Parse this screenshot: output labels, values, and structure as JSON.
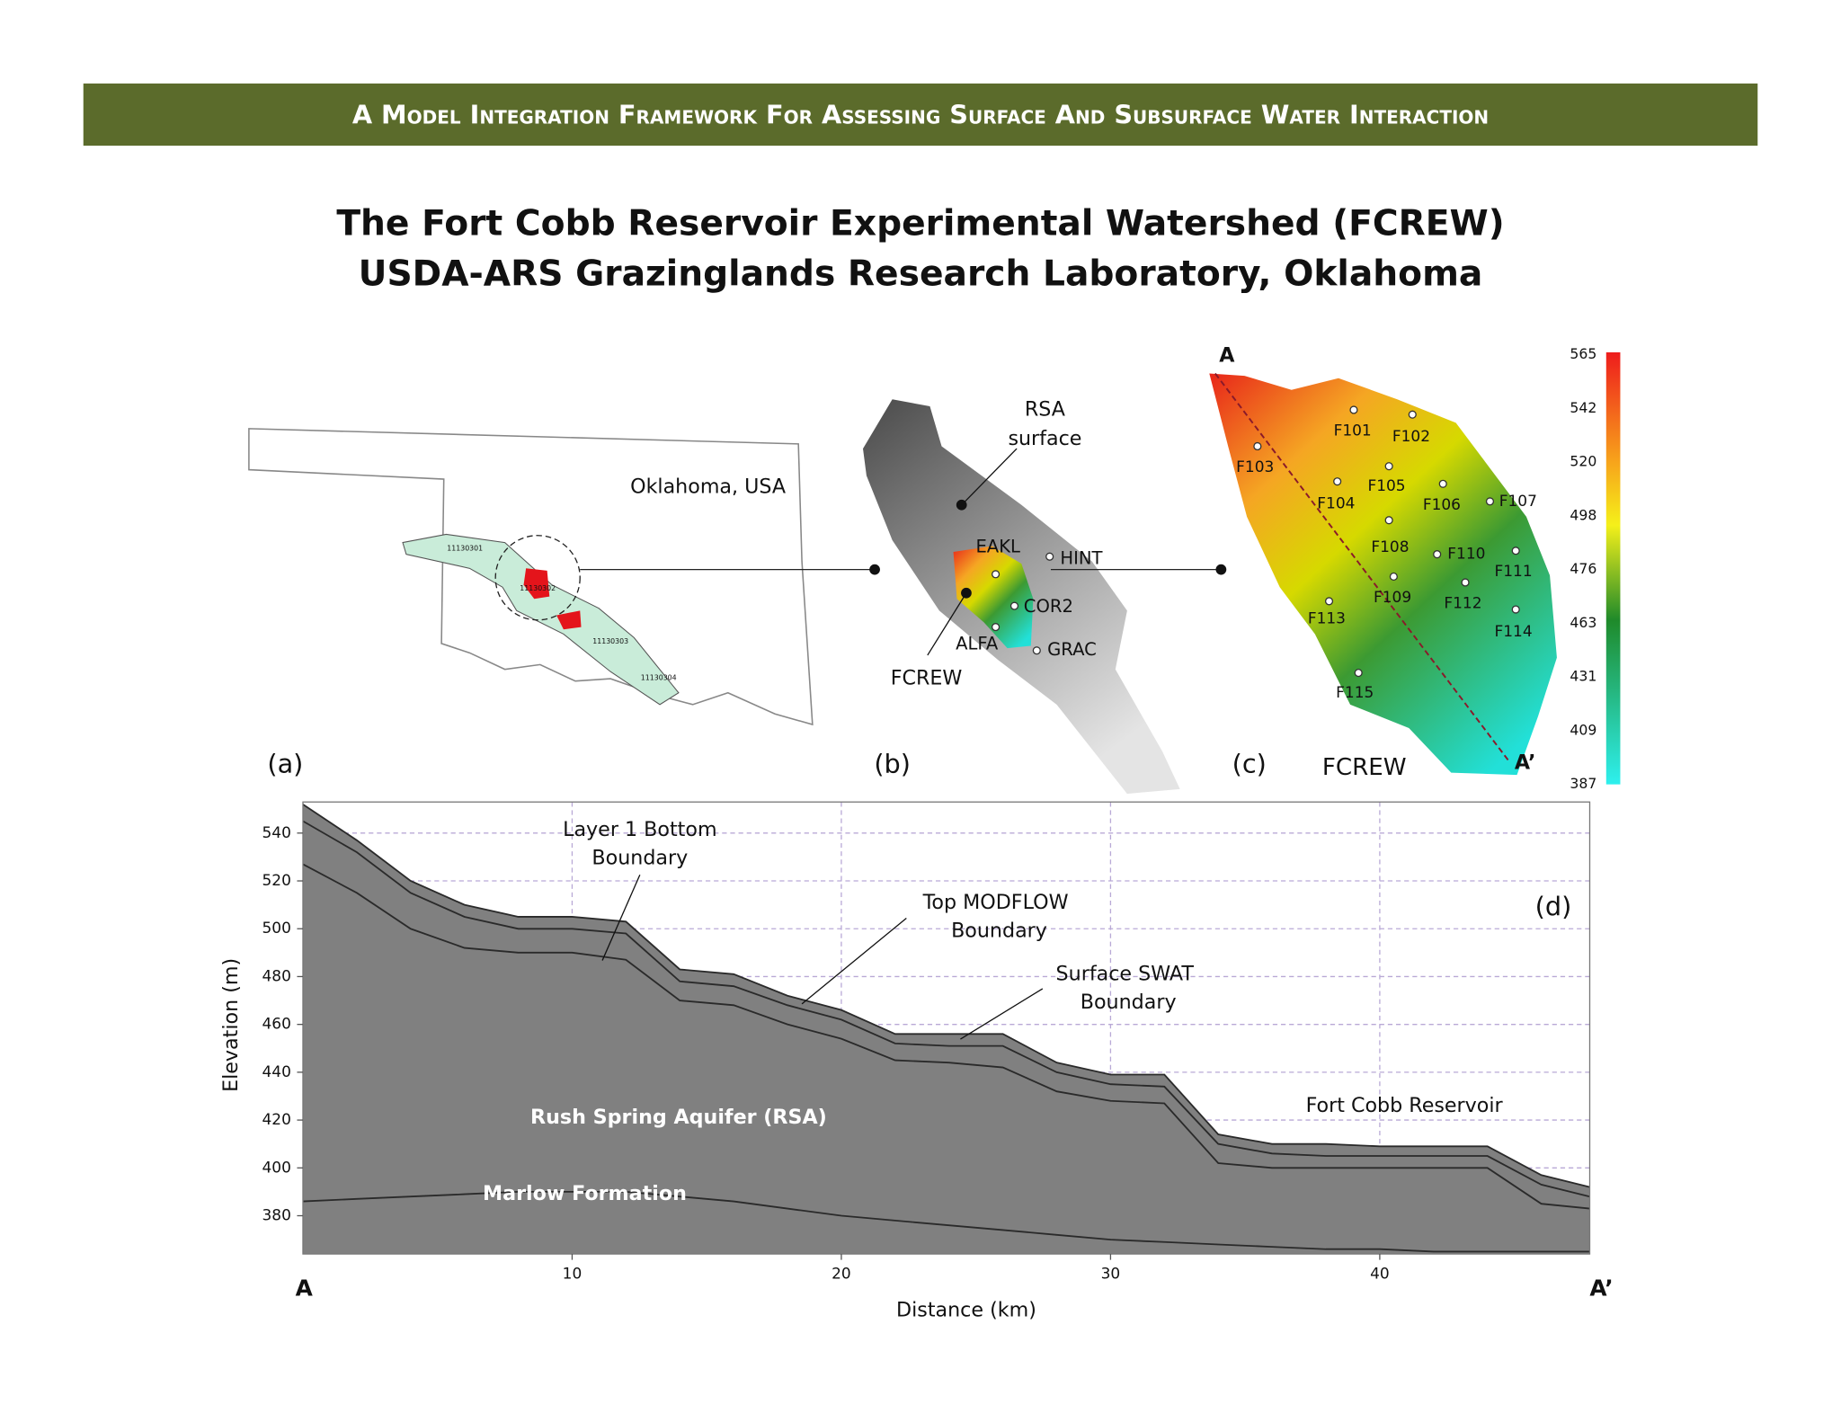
{
  "header": {
    "title": "A  Model Integration Framework For Assessing Surface And Subsurface Water Interaction"
  },
  "title": [
    "The Fort Cobb Reservoir Experimental Watershed (FCREW)",
    "USDA-ARS Grazinglands Research Laboratory, Oklahoma"
  ],
  "panels": {
    "a": {
      "label": "(a)",
      "place": "Oklahoma, USA",
      "codes": [
        "11130301",
        "11130302",
        "11130303",
        "11130304"
      ]
    },
    "b": {
      "label": "(b)",
      "rsa": [
        "RSA",
        "surface"
      ],
      "stations": [
        "EAKL",
        "HINT",
        "COR2",
        "ALFA",
        "GRAC"
      ],
      "fcrew": "FCREW"
    },
    "c": {
      "label": "(c)",
      "name": "FCREW",
      "start": "A",
      "end": "A’",
      "stations": [
        "F101",
        "F102",
        "F103",
        "F104",
        "F105",
        "F106",
        "F107",
        "F108",
        "F110",
        "F111",
        "F109",
        "F112",
        "F113",
        "F114",
        "F115"
      ],
      "colorbar": [
        565,
        542,
        520,
        498,
        476,
        463,
        431,
        409,
        387
      ]
    }
  },
  "chart_data": {
    "type": "line",
    "xlabel": "Distance (km)",
    "ylabel": "Elevation (m)",
    "xlim": [
      0,
      47.8
    ],
    "ylim": [
      364,
      553
    ],
    "xticks": [
      10,
      20,
      30,
      40
    ],
    "yticks": [
      380,
      400,
      420,
      440,
      460,
      480,
      500,
      520,
      540
    ],
    "grid": true,
    "fill": "#808080",
    "x": [
      0,
      2,
      4,
      6,
      8,
      10,
      12,
      14,
      16,
      18,
      20,
      22,
      24,
      26,
      28,
      30,
      32,
      34,
      36,
      38,
      40,
      42,
      44,
      46,
      47.8
    ],
    "series": [
      {
        "color": "#2a2a2a",
        "values": [
          552,
          537,
          520,
          510,
          505,
          505,
          503,
          483,
          481,
          472,
          466,
          456,
          456,
          456,
          444,
          439,
          439,
          414,
          410,
          410,
          409,
          409,
          409,
          397,
          392
        ]
      },
      {
        "color": "#2a2a2a",
        "values": [
          545,
          532,
          515,
          505,
          500,
          500,
          498,
          478,
          476,
          468,
          462,
          452,
          451,
          451,
          440,
          435,
          434,
          410,
          406,
          405,
          405,
          405,
          405,
          393,
          388
        ]
      },
      {
        "color": "#2a2a2a",
        "values": [
          527,
          515,
          500,
          492,
          490,
          490,
          487,
          470,
          468,
          460,
          454,
          445,
          444,
          442,
          432,
          428,
          427,
          402,
          400,
          400,
          400,
          400,
          400,
          385,
          383
        ]
      },
      {
        "color": "#2a2a2a",
        "values": [
          386,
          387,
          388,
          389,
          390,
          390,
          390,
          388,
          386,
          383,
          380,
          378,
          376,
          374,
          372,
          370,
          369,
          368,
          367,
          366,
          366,
          365,
          365,
          365,
          365
        ]
      }
    ],
    "annotations": {
      "layer1": [
        "Layer 1 Bottom",
        "Boundary"
      ],
      "modflow": [
        "Top MODFLOW",
        "Boundary"
      ],
      "swat": [
        "Surface SWAT",
        "Boundary"
      ],
      "panel": "(d)",
      "reservoir": "Fort Cobb Reservoir",
      "rsa": "Rush Spring Aquifer (RSA)",
      "marlow": "Marlow Formation",
      "start": "A",
      "end": "A’"
    }
  }
}
